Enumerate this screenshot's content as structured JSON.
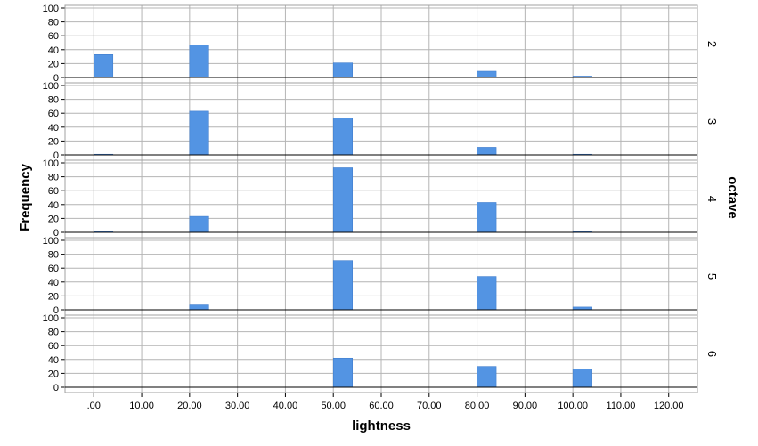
{
  "chart_data": {
    "type": "bar",
    "title": "",
    "xlabel": "lightness",
    "ylabel": "Frequency",
    "facet_label": "octave",
    "x_ticks": [
      ".00",
      "10.00",
      "20.00",
      "30.00",
      "40.00",
      "50.00",
      "60.00",
      "70.00",
      "80.00",
      "90.00",
      "100.00",
      "110.00",
      "120.00"
    ],
    "xlim": [
      -6,
      126
    ],
    "ylim": [
      0,
      100
    ],
    "y_ticks": [
      0,
      20,
      40,
      60,
      80,
      100
    ],
    "grid": true,
    "bar_color": "#5394e3",
    "bar_width": 4,
    "panels": [
      {
        "name": "2",
        "bars": [
          {
            "x": 0,
            "value": 33
          },
          {
            "x": 20,
            "value": 47
          },
          {
            "x": 50,
            "value": 21
          },
          {
            "x": 80,
            "value": 9
          },
          {
            "x": 100,
            "value": 2
          }
        ]
      },
      {
        "name": "3",
        "bars": [
          {
            "x": 0,
            "value": 1
          },
          {
            "x": 20,
            "value": 63
          },
          {
            "x": 50,
            "value": 53
          },
          {
            "x": 80,
            "value": 11
          },
          {
            "x": 100,
            "value": 1
          }
        ]
      },
      {
        "name": "4",
        "bars": [
          {
            "x": 0,
            "value": 1
          },
          {
            "x": 20,
            "value": 23
          },
          {
            "x": 50,
            "value": 93
          },
          {
            "x": 80,
            "value": 43
          },
          {
            "x": 100,
            "value": 1
          }
        ]
      },
      {
        "name": "5",
        "bars": [
          {
            "x": 0,
            "value": 0
          },
          {
            "x": 20,
            "value": 7
          },
          {
            "x": 50,
            "value": 71
          },
          {
            "x": 80,
            "value": 48
          },
          {
            "x": 100,
            "value": 4
          }
        ]
      },
      {
        "name": "6",
        "bars": [
          {
            "x": 0,
            "value": 0
          },
          {
            "x": 20,
            "value": 0
          },
          {
            "x": 50,
            "value": 42
          },
          {
            "x": 80,
            "value": 30
          },
          {
            "x": 100,
            "value": 26
          }
        ]
      }
    ]
  }
}
